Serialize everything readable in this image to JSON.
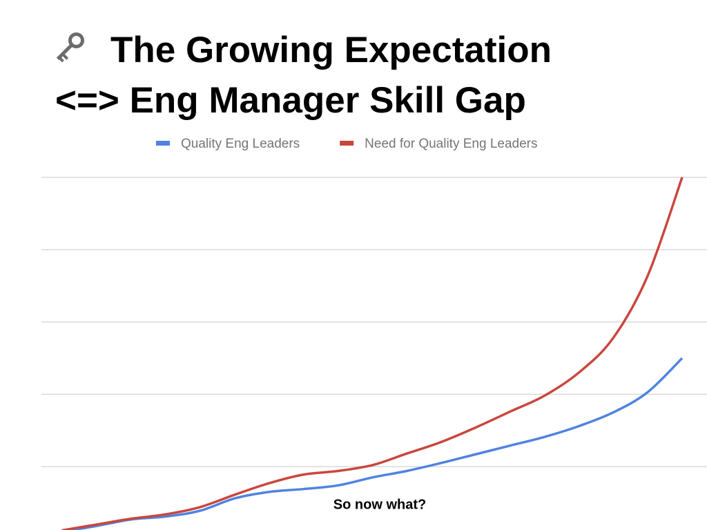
{
  "slide": {
    "title_lines": [
      "The Growing Expectation",
      "<=> Eng Manager Skill Gap"
    ],
    "caption": "So now what?"
  },
  "chart_data": {
    "type": "line",
    "x": [
      0,
      1,
      2,
      3,
      4,
      5,
      6,
      7,
      8,
      9,
      10,
      11,
      12,
      13,
      14,
      15,
      16,
      17,
      18
    ],
    "xlim": [
      0,
      18
    ],
    "ylim": [
      0,
      5
    ],
    "yticks": [
      1,
      2,
      3,
      4,
      5
    ],
    "grid": true,
    "legend": "top",
    "series": [
      {
        "name": "Quality Eng Leaders",
        "color": "#4f83e0",
        "values": [
          0.1,
          0.18,
          0.27,
          0.31,
          0.39,
          0.56,
          0.65,
          0.69,
          0.74,
          0.85,
          0.94,
          1.05,
          1.17,
          1.29,
          1.41,
          1.56,
          1.75,
          2.03,
          2.5
        ]
      },
      {
        "name": "Need for Quality Eng Leaders",
        "color": "#c9463d",
        "values": [
          0.12,
          0.2,
          0.28,
          0.34,
          0.44,
          0.61,
          0.77,
          0.89,
          0.94,
          1.02,
          1.18,
          1.34,
          1.54,
          1.76,
          1.98,
          2.3,
          2.78,
          3.64,
          5.0
        ]
      }
    ]
  }
}
